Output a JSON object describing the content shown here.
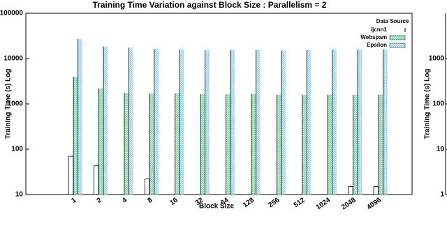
{
  "chart_data": [
    {
      "type": "bar",
      "title": "Training Time Variation against Block Size : Parallelism = 2",
      "x_label": "Block Size",
      "y_label": "Training Time (s) Log",
      "categories": [
        "1",
        "2",
        "4",
        "8",
        "16",
        "32",
        "64",
        "128",
        "256",
        "512",
        "1024",
        "2048",
        "4096"
      ],
      "series": [
        {
          "name": "ijcnn1",
          "color": "#ffffff",
          "values": [
            70,
            43,
            null,
            22,
            null,
            null,
            null,
            null,
            null,
            null,
            null,
            15,
            15
          ]
        },
        {
          "name": "Webspam",
          "color": "#6fd3a0",
          "values": [
            4000,
            2200,
            1750,
            1700,
            1700,
            1650,
            1650,
            1650,
            1600,
            1600,
            1600,
            1600,
            1600
          ]
        },
        {
          "name": "Epsilon",
          "color": "#8ccdf0",
          "values": [
            27000,
            18500,
            17500,
            16500,
            16000,
            15500,
            15500,
            15500,
            15000,
            15500,
            16000,
            16000,
            16000
          ]
        }
      ],
      "legend_title": "Data Source",
      "legend": "top-right",
      "log_scale": true,
      "ylim": [
        10,
        100000
      ],
      "yticks": [
        10,
        100,
        1000,
        10000,
        100000
      ]
    },
    {
      "type": "bar",
      "y_label": "Training Time (s) Log",
      "log_scale": true,
      "ylim": [
        1,
        10000
      ],
      "yticks": [
        1,
        10,
        100,
        1000
      ]
    }
  ]
}
